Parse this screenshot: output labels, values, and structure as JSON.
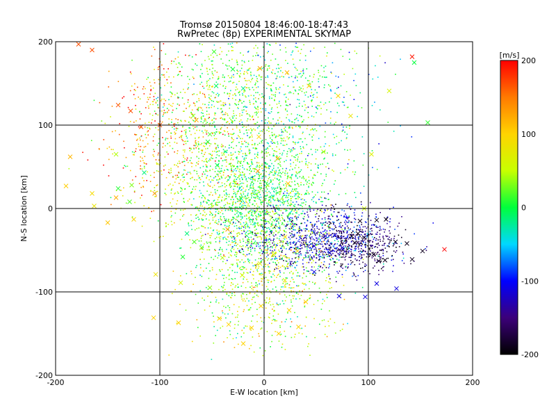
{
  "chart_data": {
    "type": "scatter",
    "title": "Tromsø 20150804 18:46:00-18:47:43",
    "subtitle": "RwPretec (8p) EXPERIMENTAL SKYMAP",
    "xlabel": "E-W location [km]",
    "ylabel": "N-S location [km]",
    "xlim": [
      -200,
      200
    ],
    "ylim": [
      -200,
      200
    ],
    "xticks": [
      "-200",
      "-100",
      "0",
      "100",
      "200"
    ],
    "yticks": [
      "-200",
      "-100",
      "0",
      "100",
      "200"
    ],
    "grid": true,
    "colorbar": {
      "label": "[m/s]",
      "range": [
        -200,
        200
      ],
      "ticks": [
        "200",
        "100",
        "0",
        "-100",
        "-200"
      ],
      "colormap": [
        "#000000",
        "#3c007a",
        "#0000ff",
        "#00d8ff",
        "#00ff3c",
        "#c8ff00",
        "#ffd400",
        "#ff7a00",
        "#ff0000"
      ]
    },
    "series": [
      {
        "marker": "x",
        "points": [
          [
            -165,
            190
          ],
          [
            -178,
            197
          ],
          [
            -186,
            62
          ],
          [
            -190,
            27
          ],
          [
            -165,
            18
          ],
          [
            -163,
            3
          ],
          [
            -140,
            124
          ],
          [
            -128,
            117
          ],
          [
            -142,
            65
          ],
          [
            -127,
            28
          ],
          [
            -129,
            8
          ],
          [
            -140,
            24
          ],
          [
            -118,
            98
          ],
          [
            -115,
            43
          ],
          [
            -105,
            18
          ],
          [
            -142,
            13
          ],
          [
            -150,
            -17
          ],
          [
            -125,
            -13
          ],
          [
            -104,
            -79
          ],
          [
            -106,
            -131
          ],
          [
            -80,
            -89
          ],
          [
            -82,
            -137
          ],
          [
            -52,
            -95
          ],
          [
            -43,
            -132
          ],
          [
            -34,
            -139
          ],
          [
            -20,
            -162
          ],
          [
            -12,
            -143
          ],
          [
            -3,
            -117
          ],
          [
            14,
            -150
          ],
          [
            33,
            -142
          ],
          [
            24,
            -122
          ],
          [
            40,
            -112
          ],
          [
            20,
            -86
          ],
          [
            48,
            -76
          ],
          [
            72,
            -105
          ],
          [
            97,
            -106
          ],
          [
            108,
            -90
          ],
          [
            -48,
            188
          ],
          [
            -30,
            167
          ],
          [
            -46,
            147
          ],
          [
            -20,
            144
          ],
          [
            -4,
            168
          ],
          [
            22,
            163
          ],
          [
            43,
            147
          ],
          [
            71,
            135
          ],
          [
            83,
            111
          ],
          [
            103,
            65
          ],
          [
            96,
            0
          ],
          [
            57,
            68
          ],
          [
            -68,
            111
          ],
          [
            -52,
            89
          ],
          [
            -54,
            80
          ],
          [
            -45,
            52
          ],
          [
            -22,
            12
          ],
          [
            -6,
            45
          ],
          [
            13,
            60
          ],
          [
            23,
            30
          ],
          [
            -5,
            86
          ],
          [
            108,
            -14
          ],
          [
            117,
            -13
          ],
          [
            120,
            141
          ],
          [
            142,
            182
          ],
          [
            144,
            175
          ],
          [
            173,
            -49
          ],
          [
            157,
            103
          ],
          [
            127,
            -96
          ],
          [
            110,
            -63
          ],
          [
            126,
            -40
          ],
          [
            137,
            -42
          ],
          [
            152,
            -51
          ],
          [
            142,
            -61
          ],
          [
            116,
            -62
          ],
          [
            105,
            -55
          ],
          [
            96,
            -35
          ],
          [
            87,
            -41
          ],
          [
            84,
            -33
          ],
          [
            92,
            -15
          ],
          [
            90,
            -30
          ],
          [
            75,
            -47
          ],
          [
            68,
            -32
          ],
          [
            59,
            -33
          ],
          [
            63,
            -53
          ],
          [
            48,
            -45
          ],
          [
            32,
            -51
          ],
          [
            20,
            -34
          ],
          [
            9,
            -55
          ],
          [
            -4,
            -66
          ],
          [
            -21,
            -80
          ],
          [
            -40,
            -59
          ],
          [
            -60,
            -47
          ],
          [
            -67,
            -40
          ],
          [
            -78,
            -58
          ],
          [
            -100,
            100
          ],
          [
            -74,
            -30
          ],
          [
            -35,
            -25
          ],
          [
            -65,
            106
          ]
        ]
      }
    ]
  }
}
